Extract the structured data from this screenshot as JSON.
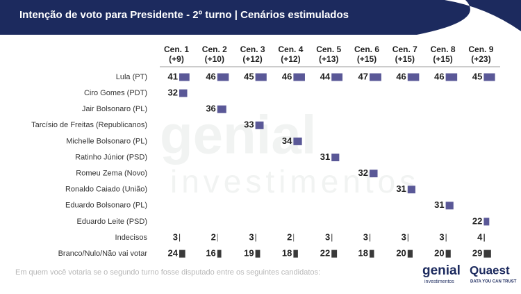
{
  "header": {
    "title": "Intenção de voto para Presidente - 2º turno | Cenários estimulados"
  },
  "columns": [
    {
      "name": "Cen. 1",
      "diff": "(+9)"
    },
    {
      "name": "Cen. 2",
      "diff": "(+10)"
    },
    {
      "name": "Cen. 3",
      "diff": "(+12)"
    },
    {
      "name": "Cen. 4",
      "diff": "(+12)"
    },
    {
      "name": "Cen. 5",
      "diff": "(+13)"
    },
    {
      "name": "Cen. 6",
      "diff": "(+15)"
    },
    {
      "name": "Cen. 7",
      "diff": "(+15)"
    },
    {
      "name": "Cen. 8",
      "diff": "(+15)"
    },
    {
      "name": "Cen. 9",
      "diff": "(+23)"
    }
  ],
  "rows": [
    {
      "name": "Lula (PT)",
      "color": "#5a5897",
      "values": [
        41,
        46,
        45,
        46,
        44,
        47,
        46,
        46,
        45
      ]
    },
    {
      "name": "Ciro Gomes (PDT)",
      "color": "#5a5897",
      "values": [
        32,
        null,
        null,
        null,
        null,
        null,
        null,
        null,
        null
      ]
    },
    {
      "name": "Jair Bolsonaro (PL)",
      "color": "#5a5897",
      "values": [
        null,
        36,
        null,
        null,
        null,
        null,
        null,
        null,
        null
      ]
    },
    {
      "name": "Tarcísio de Freitas (Republicanos)",
      "color": "#5a5897",
      "values": [
        null,
        null,
        33,
        null,
        null,
        null,
        null,
        null,
        null
      ]
    },
    {
      "name": "Michelle Bolsonaro (PL)",
      "color": "#5a5897",
      "values": [
        null,
        null,
        null,
        34,
        null,
        null,
        null,
        null,
        null
      ]
    },
    {
      "name": "Ratinho Júnior (PSD)",
      "color": "#5a5897",
      "values": [
        null,
        null,
        null,
        null,
        31,
        null,
        null,
        null,
        null
      ]
    },
    {
      "name": "Romeu Zema (Novo)",
      "color": "#5a5897",
      "values": [
        null,
        null,
        null,
        null,
        null,
        32,
        null,
        null,
        null
      ]
    },
    {
      "name": "Ronaldo Caiado (União)",
      "color": "#5a5897",
      "values": [
        null,
        null,
        null,
        null,
        null,
        null,
        31,
        null,
        null
      ]
    },
    {
      "name": "Eduardo Bolsonaro (PL)",
      "color": "#5a5897",
      "values": [
        null,
        null,
        null,
        null,
        null,
        null,
        null,
        31,
        null
      ]
    },
    {
      "name": "Eduardo Leite (PSD)",
      "color": "#5a5897",
      "values": [
        null,
        null,
        null,
        null,
        null,
        null,
        null,
        null,
        22
      ]
    },
    {
      "name": "Indecisos",
      "color": "#3a3a3a",
      "values": [
        3,
        2,
        3,
        2,
        3,
        3,
        3,
        3,
        4
      ]
    },
    {
      "name": "Branco/Nulo/Não vai votar",
      "color": "#3a3a3a",
      "values": [
        24,
        16,
        19,
        18,
        22,
        18,
        20,
        20,
        29
      ]
    }
  ],
  "footer": {
    "note": "Em quem você votaria se o segundo turno fosse disputado entre os seguintes candidatos:",
    "logo1": "genial",
    "logo1_sub": "investimentos",
    "logo2": "Quaest",
    "logo2_sub": "DATA YOU CAN TRUST"
  }
}
